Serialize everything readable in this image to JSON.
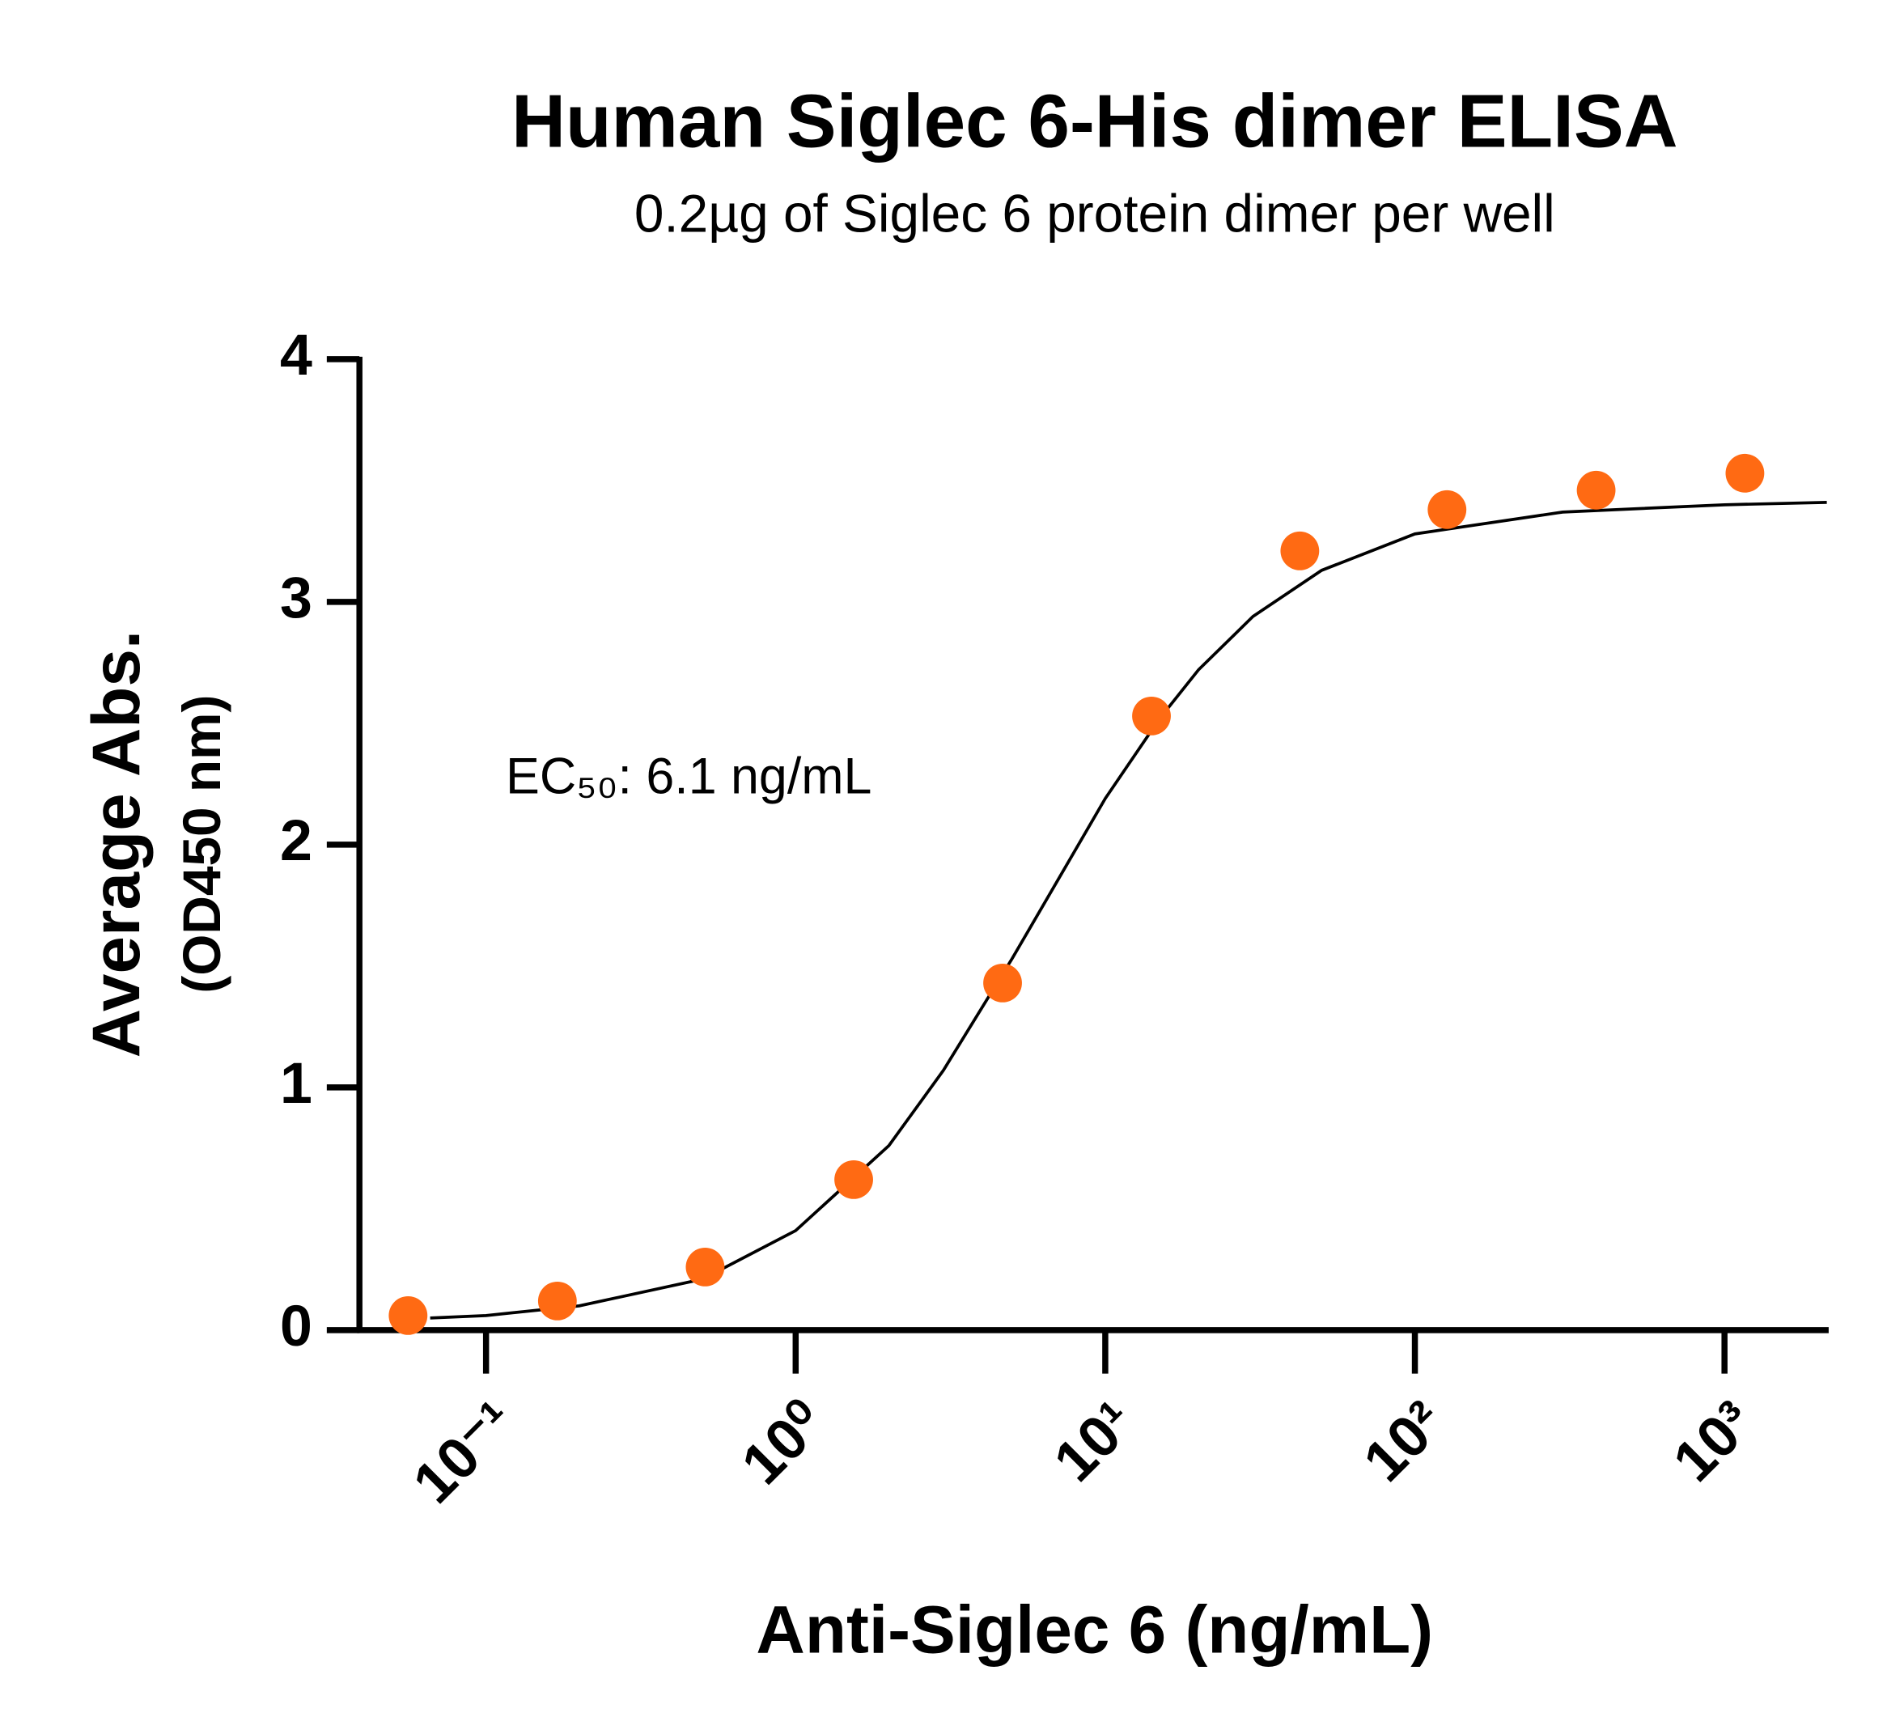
{
  "chart_data": {
    "type": "scatter",
    "title": "Human Siglec 6-His dimer ELISA",
    "subtitle": "0.2µg of Siglec 6 protein dimer per well",
    "x_label": "Anti-Siglec 6 (ng/mL)",
    "y_label": "Average Abs.",
    "y_sublabel": "(OD450 nm)",
    "annotation": "EC₅₀: 6.1 ng/mL",
    "x_scale": "log",
    "xlim": [
      0.039,
      2170
    ],
    "xticks": [
      {
        "value": 0.1,
        "label": "10⁻¹"
      },
      {
        "value": 1,
        "label": "10⁰"
      },
      {
        "value": 10,
        "label": "10¹"
      },
      {
        "value": 100,
        "label": "10²"
      },
      {
        "value": 1000,
        "label": "10³"
      }
    ],
    "ylim": [
      0,
      4
    ],
    "yticks": [
      0,
      1,
      2,
      3,
      4
    ],
    "series": [
      {
        "type": "scatter",
        "color": "#ff6a13",
        "x": [
          0.056,
          0.17,
          0.51,
          1.54,
          4.66,
          14.1,
          42.5,
          127,
          385,
          1164
        ],
        "values": [
          0.06,
          0.12,
          0.26,
          0.62,
          1.43,
          2.53,
          3.21,
          3.38,
          3.46,
          3.53
        ]
      },
      {
        "type": "line",
        "color": "#000000",
        "x": [
          0.066,
          0.1,
          0.2,
          0.5,
          1,
          2,
          3,
          5,
          7,
          10,
          15,
          20,
          30,
          50,
          100,
          300,
          1000,
          2140
        ],
        "values": [
          0.05,
          0.06,
          0.1,
          0.21,
          0.41,
          0.76,
          1.07,
          1.53,
          1.85,
          2.19,
          2.52,
          2.72,
          2.94,
          3.13,
          3.28,
          3.37,
          3.4,
          3.41
        ]
      }
    ]
  }
}
